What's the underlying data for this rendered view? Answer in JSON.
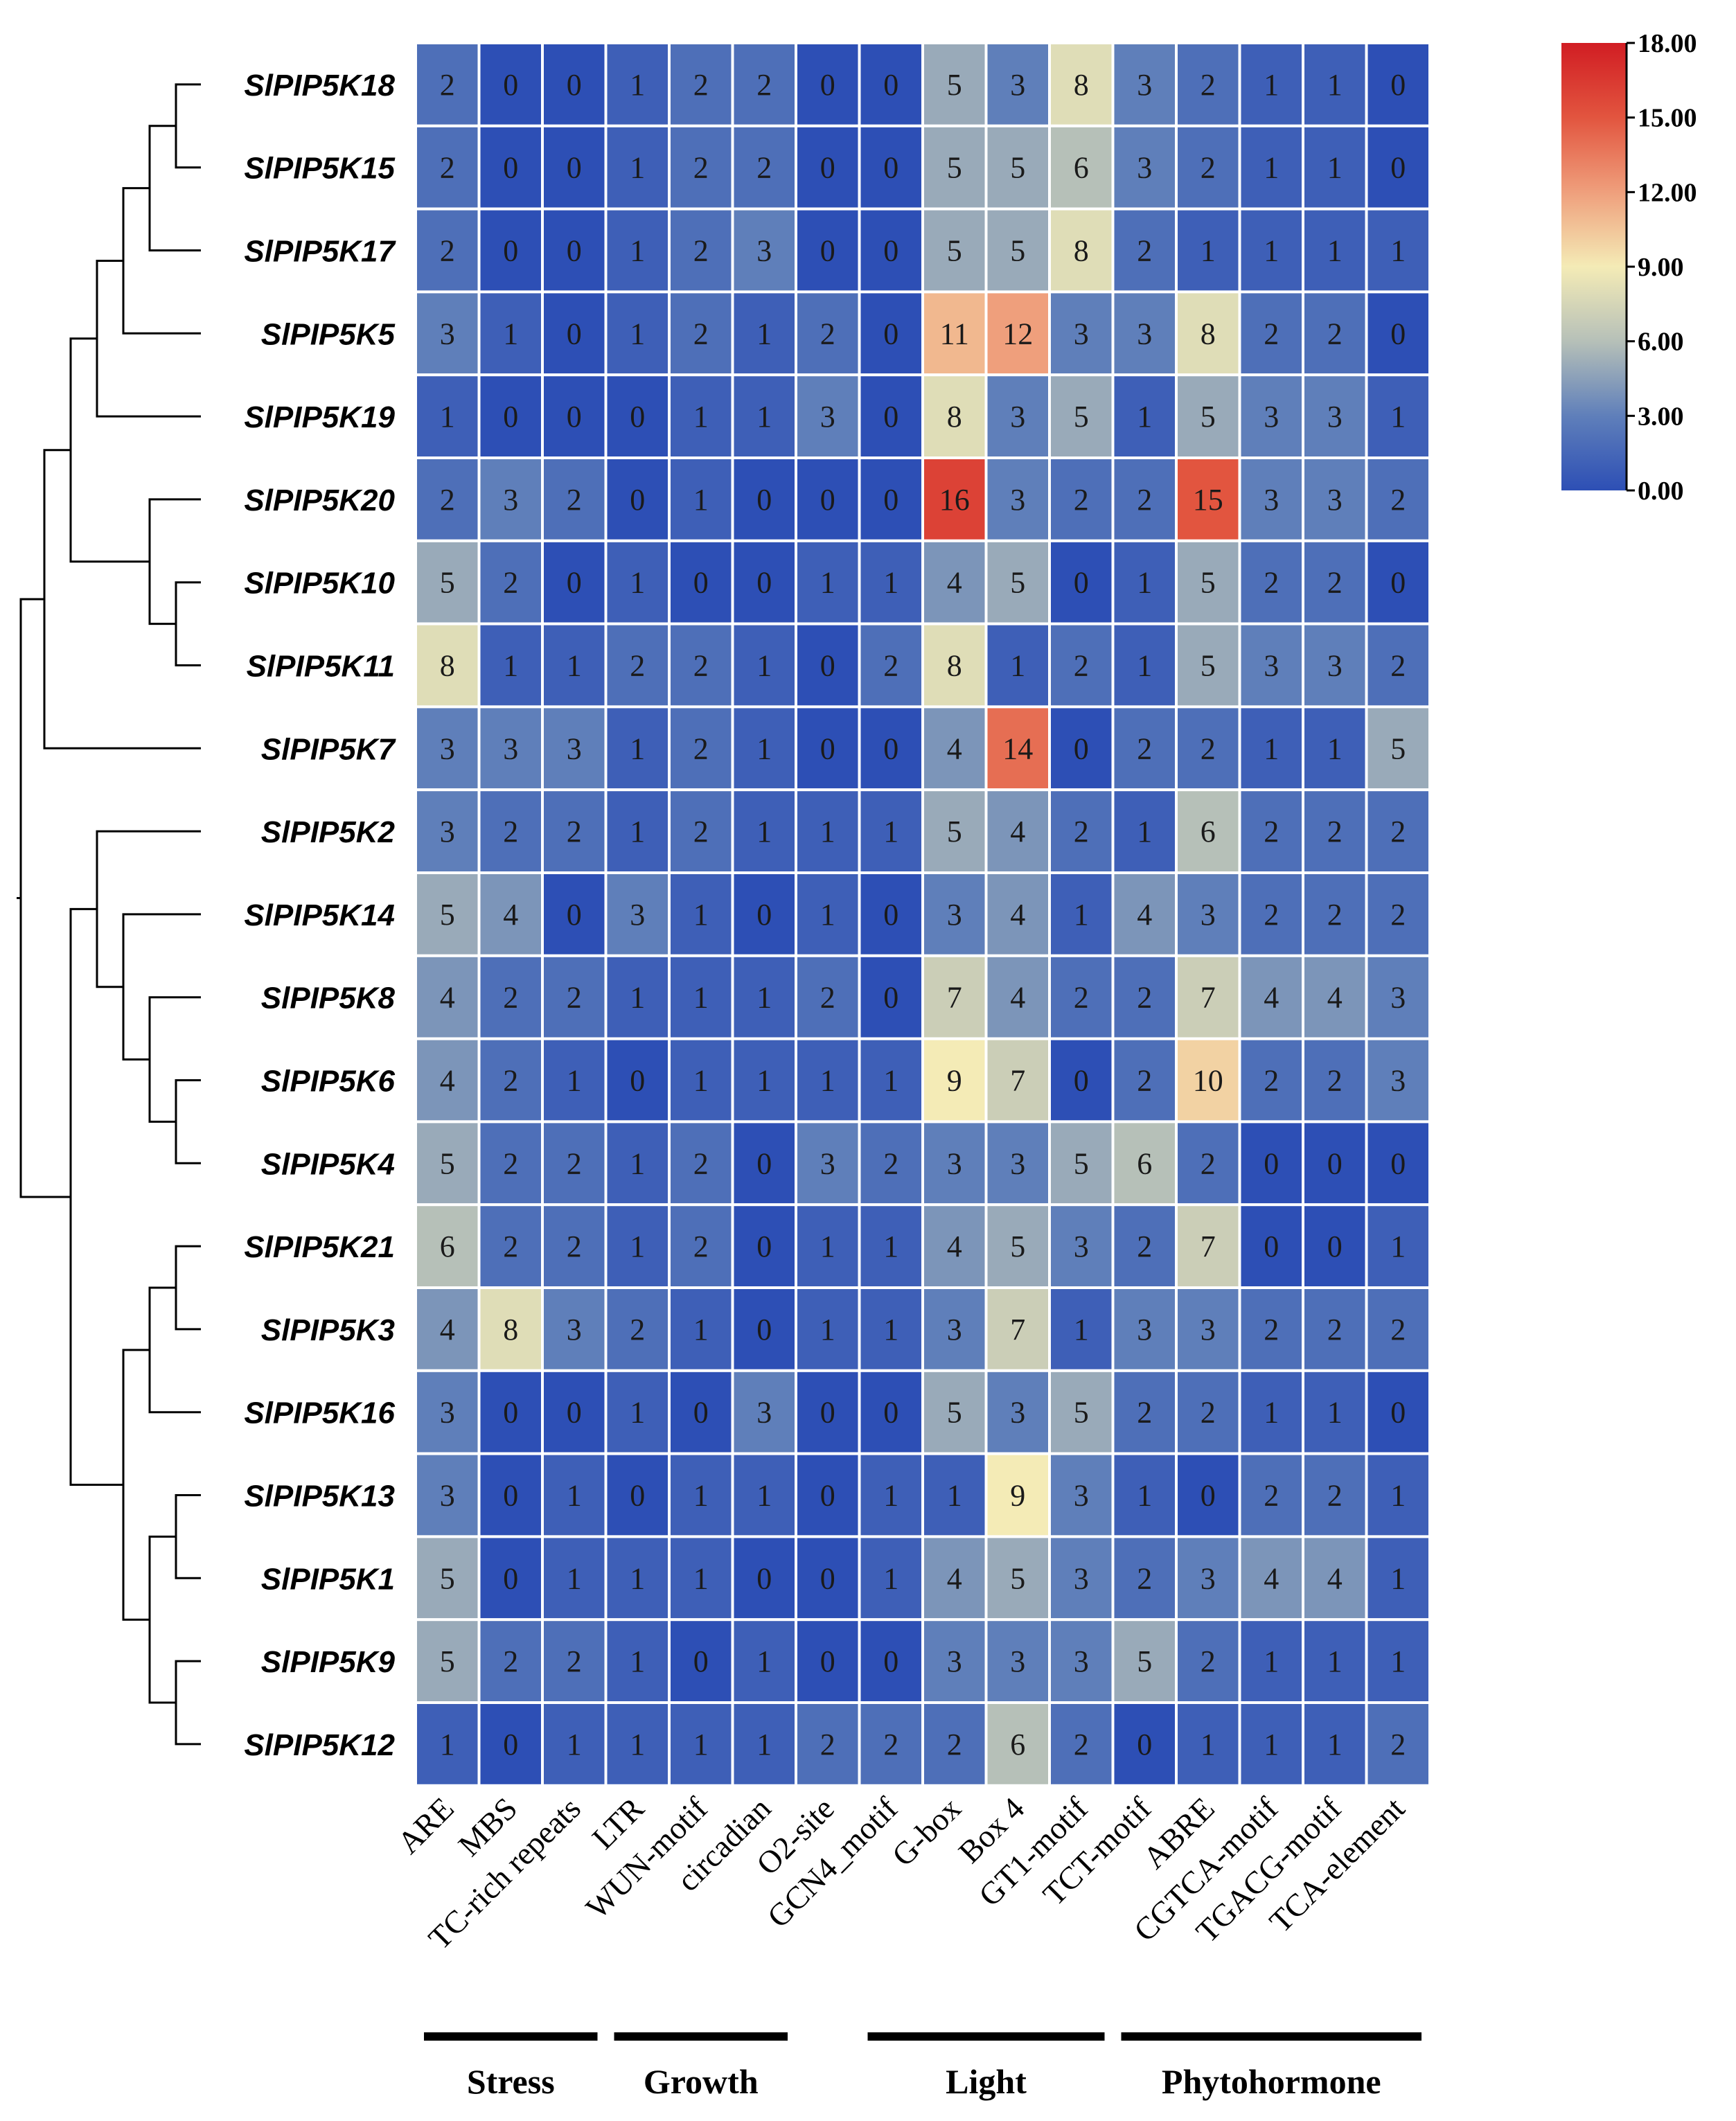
{
  "chart_data": {
    "type": "heatmap",
    "rows": [
      "SlPIP5K18",
      "SlPIP5K15",
      "SlPIP5K17",
      "SlPIP5K5",
      "SlPIP5K19",
      "SlPIP5K20",
      "SlPIP5K10",
      "SlPIP5K11",
      "SlPIP5K7",
      "SlPIP5K2",
      "SlPIP5K14",
      "SlPIP5K8",
      "SlPIP5K6",
      "SlPIP5K4",
      "SlPIP5K21",
      "SlPIP5K3",
      "SlPIP5K16",
      "SlPIP5K13",
      "SlPIP5K1",
      "SlPIP5K9",
      "SlPIP5K12"
    ],
    "columns": [
      "ARE",
      "MBS",
      "TC-rich repeats",
      "LTR",
      "WUN-motif",
      "circadian",
      "O2-site",
      "GCN4_motif",
      "G-box",
      "Box 4",
      "GT1-motif",
      "TCT-motif",
      "ABRE",
      "CGTCA-motif",
      "TGACG-motif",
      "TCA-element"
    ],
    "values": [
      [
        2,
        0,
        0,
        1,
        2,
        2,
        0,
        0,
        5,
        3,
        8,
        3,
        2,
        1,
        1,
        0
      ],
      [
        2,
        0,
        0,
        1,
        2,
        2,
        0,
        0,
        5,
        5,
        6,
        3,
        2,
        1,
        1,
        0
      ],
      [
        2,
        0,
        0,
        1,
        2,
        3,
        0,
        0,
        5,
        5,
        8,
        2,
        1,
        1,
        1,
        1
      ],
      [
        3,
        1,
        0,
        1,
        2,
        1,
        2,
        0,
        11,
        12,
        3,
        3,
        8,
        2,
        2,
        0
      ],
      [
        1,
        0,
        0,
        0,
        1,
        1,
        3,
        0,
        8,
        3,
        5,
        1,
        5,
        3,
        3,
        1
      ],
      [
        2,
        3,
        2,
        0,
        1,
        0,
        0,
        0,
        16,
        3,
        2,
        2,
        15,
        3,
        3,
        2
      ],
      [
        5,
        2,
        0,
        1,
        0,
        0,
        1,
        1,
        4,
        5,
        0,
        1,
        5,
        2,
        2,
        0
      ],
      [
        8,
        1,
        1,
        2,
        2,
        1,
        0,
        2,
        8,
        1,
        2,
        1,
        5,
        3,
        3,
        2
      ],
      [
        3,
        3,
        3,
        1,
        2,
        1,
        0,
        0,
        4,
        14,
        0,
        2,
        2,
        1,
        1,
        5
      ],
      [
        3,
        2,
        2,
        1,
        2,
        1,
        1,
        1,
        5,
        4,
        2,
        1,
        6,
        2,
        2,
        2
      ],
      [
        5,
        4,
        0,
        3,
        1,
        0,
        1,
        0,
        3,
        4,
        1,
        4,
        3,
        2,
        2,
        2
      ],
      [
        4,
        2,
        2,
        1,
        1,
        1,
        2,
        0,
        7,
        4,
        2,
        2,
        7,
        4,
        4,
        3
      ],
      [
        4,
        2,
        1,
        0,
        1,
        1,
        1,
        1,
        9,
        7,
        0,
        2,
        10,
        2,
        2,
        3
      ],
      [
        5,
        2,
        2,
        1,
        2,
        0,
        3,
        2,
        3,
        3,
        5,
        6,
        2,
        0,
        0,
        0
      ],
      [
        6,
        2,
        2,
        1,
        2,
        0,
        1,
        1,
        4,
        5,
        3,
        2,
        7,
        0,
        0,
        1
      ],
      [
        4,
        8,
        3,
        2,
        1,
        0,
        1,
        1,
        3,
        7,
        1,
        3,
        3,
        2,
        2,
        2
      ],
      [
        3,
        0,
        0,
        1,
        0,
        3,
        0,
        0,
        5,
        3,
        5,
        2,
        2,
        1,
        1,
        0
      ],
      [
        3,
        0,
        1,
        0,
        1,
        1,
        0,
        1,
        1,
        9,
        3,
        1,
        0,
        2,
        2,
        1
      ],
      [
        5,
        0,
        1,
        1,
        1,
        0,
        0,
        1,
        4,
        5,
        3,
        2,
        3,
        4,
        4,
        1
      ],
      [
        5,
        2,
        2,
        1,
        0,
        1,
        0,
        0,
        3,
        3,
        3,
        5,
        2,
        1,
        1,
        1
      ],
      [
        1,
        0,
        1,
        1,
        1,
        1,
        2,
        2,
        2,
        6,
        2,
        0,
        1,
        1,
        1,
        2
      ]
    ],
    "color_scale": {
      "range": [
        0,
        18
      ],
      "ticks": [
        "18.00",
        "15.00",
        "12.00",
        "9.00",
        "6.00",
        "3.00",
        "0.00"
      ],
      "stops": [
        {
          "value": 0,
          "color": "#2d4fb5"
        },
        {
          "value": 3,
          "color": "#5f7fba"
        },
        {
          "value": 6,
          "color": "#b6c0b8"
        },
        {
          "value": 9,
          "color": "#f4ebb6"
        },
        {
          "value": 12,
          "color": "#ef9f7c"
        },
        {
          "value": 15,
          "color": "#e2553f"
        },
        {
          "value": 18,
          "color": "#d11d23"
        }
      ]
    },
    "groups": [
      {
        "label": "Stress",
        "from": 0,
        "to": 2
      },
      {
        "label": "Growth",
        "from": 3,
        "to": 5
      },
      {
        "label": "Light",
        "from": 7,
        "to": 10
      },
      {
        "label": "Phytohormone",
        "from": 11,
        "to": 15
      }
    ],
    "dendrogram": "hierarchical clustering of the 21 genes (row order above)"
  }
}
